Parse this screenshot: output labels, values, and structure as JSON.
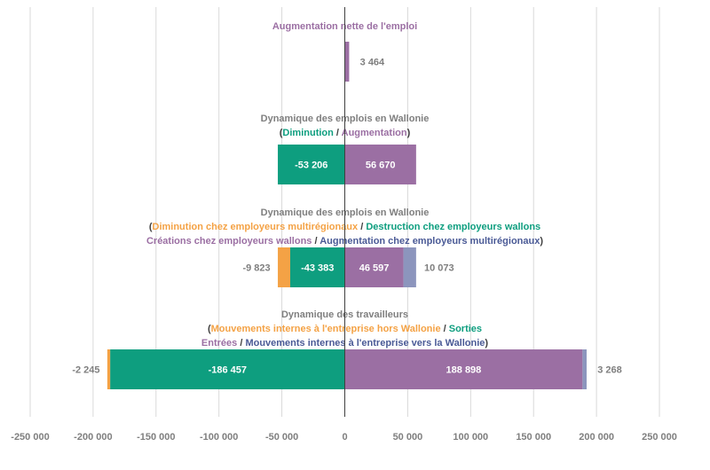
{
  "colors": {
    "purple": "#9b6fa3",
    "green": "#0e9e7f",
    "orange": "#f4a245",
    "slate": "#8c95bd",
    "blue_text": "#4a5a96",
    "grey": "#7f7f7f",
    "grid": "#d9d9d9",
    "axis": "#404040"
  },
  "chart_data": {
    "type": "bar",
    "orientation": "horizontal-stacked-diverging",
    "xlim": [
      -250000,
      250000
    ],
    "x_ticks": [
      -250000,
      -200000,
      -150000,
      -100000,
      -50000,
      0,
      50000,
      100000,
      150000,
      200000,
      250000
    ],
    "x_tick_labels": [
      "-250 000",
      "-200 000",
      "-150 000",
      "-100 000",
      "-50 000",
      "0",
      "50 000",
      "100 000",
      "150 000",
      "200 000",
      "250 000"
    ],
    "grid": true,
    "groups": [
      {
        "title_lines": [
          [
            {
              "text": "Augmentation nette de l'emploi",
              "color": "purple"
            }
          ]
        ],
        "segments": [
          {
            "value": 3464,
            "color": "purple"
          }
        ],
        "labels": [
          {
            "text": "3 464",
            "anchor_value": 3464,
            "position": "outside-right",
            "color": "grey"
          }
        ]
      },
      {
        "title_lines": [
          [
            {
              "text": "Dynamique des emplois en Wallonie",
              "color": "grey"
            }
          ],
          [
            {
              "text": "(",
              "color": "axis"
            },
            {
              "text": "Diminution",
              "color": "green"
            },
            {
              "text": " / ",
              "color": "axis"
            },
            {
              "text": "Augmentation",
              "color": "purple"
            },
            {
              "text": ")",
              "color": "axis"
            }
          ]
        ],
        "segments": [
          {
            "value": -53206,
            "color": "green"
          },
          {
            "value": 56670,
            "color": "purple"
          }
        ],
        "labels": [
          {
            "text": "-53 206",
            "segment": 0,
            "position": "inside",
            "color": "white"
          },
          {
            "text": "56 670",
            "segment": 1,
            "position": "inside",
            "color": "white"
          }
        ]
      },
      {
        "title_lines": [
          [
            {
              "text": "Dynamique des emplois en Wallonie",
              "color": "grey"
            }
          ],
          [
            {
              "text": "(",
              "color": "axis"
            },
            {
              "text": "Diminution chez employeurs multirégionaux",
              "color": "orange"
            },
            {
              "text": " / ",
              "color": "axis"
            },
            {
              "text": "Destruction chez employeurs wallons",
              "color": "green"
            }
          ],
          [
            {
              "text": "Créations chez employeurs wallons",
              "color": "purple"
            },
            {
              "text": " / ",
              "color": "axis"
            },
            {
              "text": "Augmentation chez employeurs multirégionaux",
              "color": "blue_text"
            },
            {
              "text": ")",
              "color": "axis"
            }
          ]
        ],
        "segments": [
          {
            "value": -43383,
            "color": "green"
          },
          {
            "value": -9823,
            "color": "orange"
          },
          {
            "value": 46597,
            "color": "purple"
          },
          {
            "value": 10073,
            "color": "slate"
          }
        ],
        "labels": [
          {
            "text": "-9 823",
            "anchor_value": -53206,
            "position": "outside-left",
            "color": "grey"
          },
          {
            "text": "-43 383",
            "segment": 0,
            "position": "inside",
            "color": "white"
          },
          {
            "text": "46 597",
            "segment": 2,
            "position": "inside",
            "color": "white"
          },
          {
            "text": "10 073",
            "anchor_value": 56670,
            "position": "outside-right",
            "color": "grey"
          }
        ]
      },
      {
        "title_lines": [
          [
            {
              "text": "Dynamique des travailleurs",
              "color": "grey"
            }
          ],
          [
            {
              "text": "(",
              "color": "axis"
            },
            {
              "text": "Mouvements internes à l'entreprise hors Wallonie",
              "color": "orange"
            },
            {
              "text": " / ",
              "color": "axis"
            },
            {
              "text": "Sorties",
              "color": "green"
            }
          ],
          [
            {
              "text": "Entrées",
              "color": "purple"
            },
            {
              "text": " / ",
              "color": "axis"
            },
            {
              "text": "Mouvements internes à l'entreprise vers la Wallonie",
              "color": "blue_text"
            },
            {
              "text": ")",
              "color": "axis"
            }
          ]
        ],
        "segments": [
          {
            "value": -186457,
            "color": "green"
          },
          {
            "value": -2245,
            "color": "orange"
          },
          {
            "value": 188898,
            "color": "purple"
          },
          {
            "value": 3268,
            "color": "slate"
          }
        ],
        "labels": [
          {
            "text": "-2 245",
            "anchor_value": -188702,
            "position": "outside-left",
            "color": "grey"
          },
          {
            "text": "-186 457",
            "segment": 0,
            "position": "inside",
            "color": "white"
          },
          {
            "text": "188 898",
            "segment": 2,
            "position": "inside",
            "color": "white"
          },
          {
            "text": "3 268",
            "anchor_value": 192166,
            "position": "outside-right",
            "color": "grey"
          }
        ]
      }
    ]
  }
}
